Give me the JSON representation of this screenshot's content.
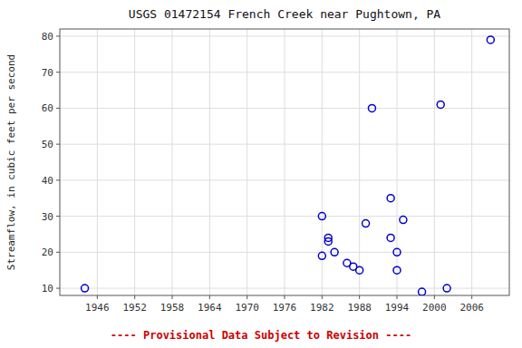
{
  "chart_data": {
    "type": "scatter",
    "title": "USGS 01472154 French Creek near Pughtown, PA",
    "y_label": "Streamflow, in cubic feet per second",
    "x": [
      1944,
      1982,
      1982,
      1983,
      1983,
      1984,
      1986,
      1987,
      1988,
      1989,
      1990,
      1993,
      1993,
      1994,
      1994,
      1995,
      1998,
      2001,
      2002,
      2009
    ],
    "values": [
      10,
      19,
      30,
      23,
      24,
      20,
      17,
      16,
      15,
      28,
      60,
      35,
      24,
      15,
      20,
      29,
      9,
      61,
      10,
      79
    ],
    "color": "#0000cc",
    "marker": "open-circle",
    "xlim": [
      1940,
      2012
    ],
    "ylim": [
      8,
      82
    ],
    "xticks": [
      1946,
      1952,
      1958,
      1964,
      1970,
      1976,
      1982,
      1988,
      1994,
      2000,
      2006
    ],
    "yticks": [
      10,
      20,
      30,
      40,
      50,
      60,
      70,
      80
    ],
    "grid": true,
    "annotations": [
      {
        "text": "---- Provisional Data Subject to Revision ----",
        "color": "#cc0000"
      }
    ]
  }
}
